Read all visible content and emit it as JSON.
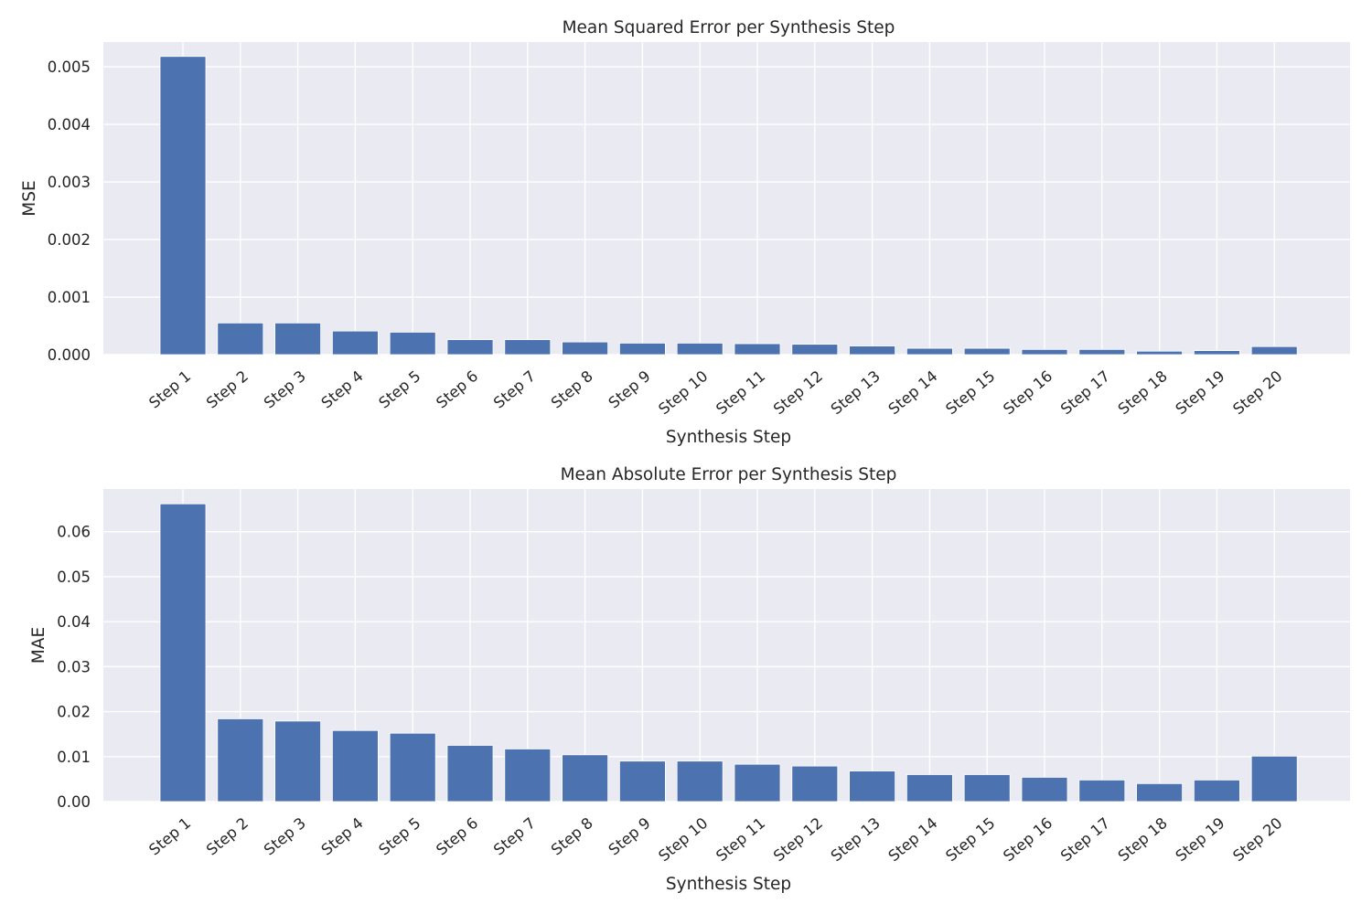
{
  "chart_data": [
    {
      "type": "bar",
      "title": "Mean Squared Error per Synthesis Step",
      "xlabel": "Synthesis Step",
      "ylabel": "MSE",
      "categories": [
        "Step 1",
        "Step 2",
        "Step 3",
        "Step 4",
        "Step 5",
        "Step 6",
        "Step 7",
        "Step 8",
        "Step 9",
        "Step 10",
        "Step 11",
        "Step 12",
        "Step 13",
        "Step 14",
        "Step 15",
        "Step 16",
        "Step 17",
        "Step 18",
        "Step 19",
        "Step 20"
      ],
      "values": [
        0.00518,
        0.00055,
        0.00055,
        0.00041,
        0.00039,
        0.00026,
        0.00026,
        0.00022,
        0.0002,
        0.0002,
        0.00019,
        0.00018,
        0.00015,
        0.00011,
        0.00011,
        9e-05,
        9e-05,
        6e-05,
        7e-05,
        0.00014
      ],
      "ylim": [
        0,
        0.00543
      ],
      "yticks": [
        0.0,
        0.001,
        0.002,
        0.003,
        0.004,
        0.005
      ],
      "ytick_labels": [
        "0.000",
        "0.001",
        "0.002",
        "0.003",
        "0.004",
        "0.005"
      ],
      "grid": true,
      "bar_color": "#4c72b0",
      "background_color": "#eaeaf2"
    },
    {
      "type": "bar",
      "title": "Mean Absolute Error per Synthesis Step",
      "xlabel": "Synthesis Step",
      "ylabel": "MAE",
      "categories": [
        "Step 1",
        "Step 2",
        "Step 3",
        "Step 4",
        "Step 5",
        "Step 6",
        "Step 7",
        "Step 8",
        "Step 9",
        "Step 10",
        "Step 11",
        "Step 12",
        "Step 13",
        "Step 14",
        "Step 15",
        "Step 16",
        "Step 17",
        "Step 18",
        "Step 19",
        "Step 20"
      ],
      "values": [
        0.0662,
        0.0184,
        0.0179,
        0.0158,
        0.0152,
        0.0125,
        0.0117,
        0.0104,
        0.009,
        0.009,
        0.0083,
        0.0079,
        0.0068,
        0.006,
        0.006,
        0.0054,
        0.0048,
        0.004,
        0.0048,
        0.0101
      ],
      "ylim": [
        0,
        0.0695
      ],
      "yticks": [
        0.0,
        0.01,
        0.02,
        0.03,
        0.04,
        0.05,
        0.06
      ],
      "ytick_labels": [
        "0.00",
        "0.01",
        "0.02",
        "0.03",
        "0.04",
        "0.05",
        "0.06"
      ],
      "grid": true,
      "bar_color": "#4c72b0",
      "background_color": "#eaeaf2"
    }
  ]
}
